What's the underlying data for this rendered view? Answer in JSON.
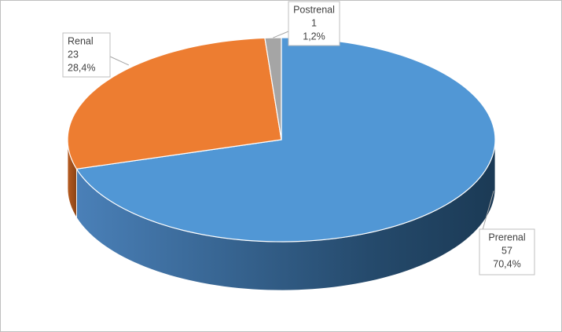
{
  "chart_data": {
    "type": "pie3d",
    "categories": [
      "Prerenal",
      "Renal",
      "Postrenal"
    ],
    "values": [
      57,
      23,
      1
    ],
    "percent_labels": [
      "70,4%",
      "28,4%",
      "1,2%"
    ],
    "colors": [
      "#5197d5",
      "#ed7d31",
      "#a5a5a5"
    ]
  }
}
